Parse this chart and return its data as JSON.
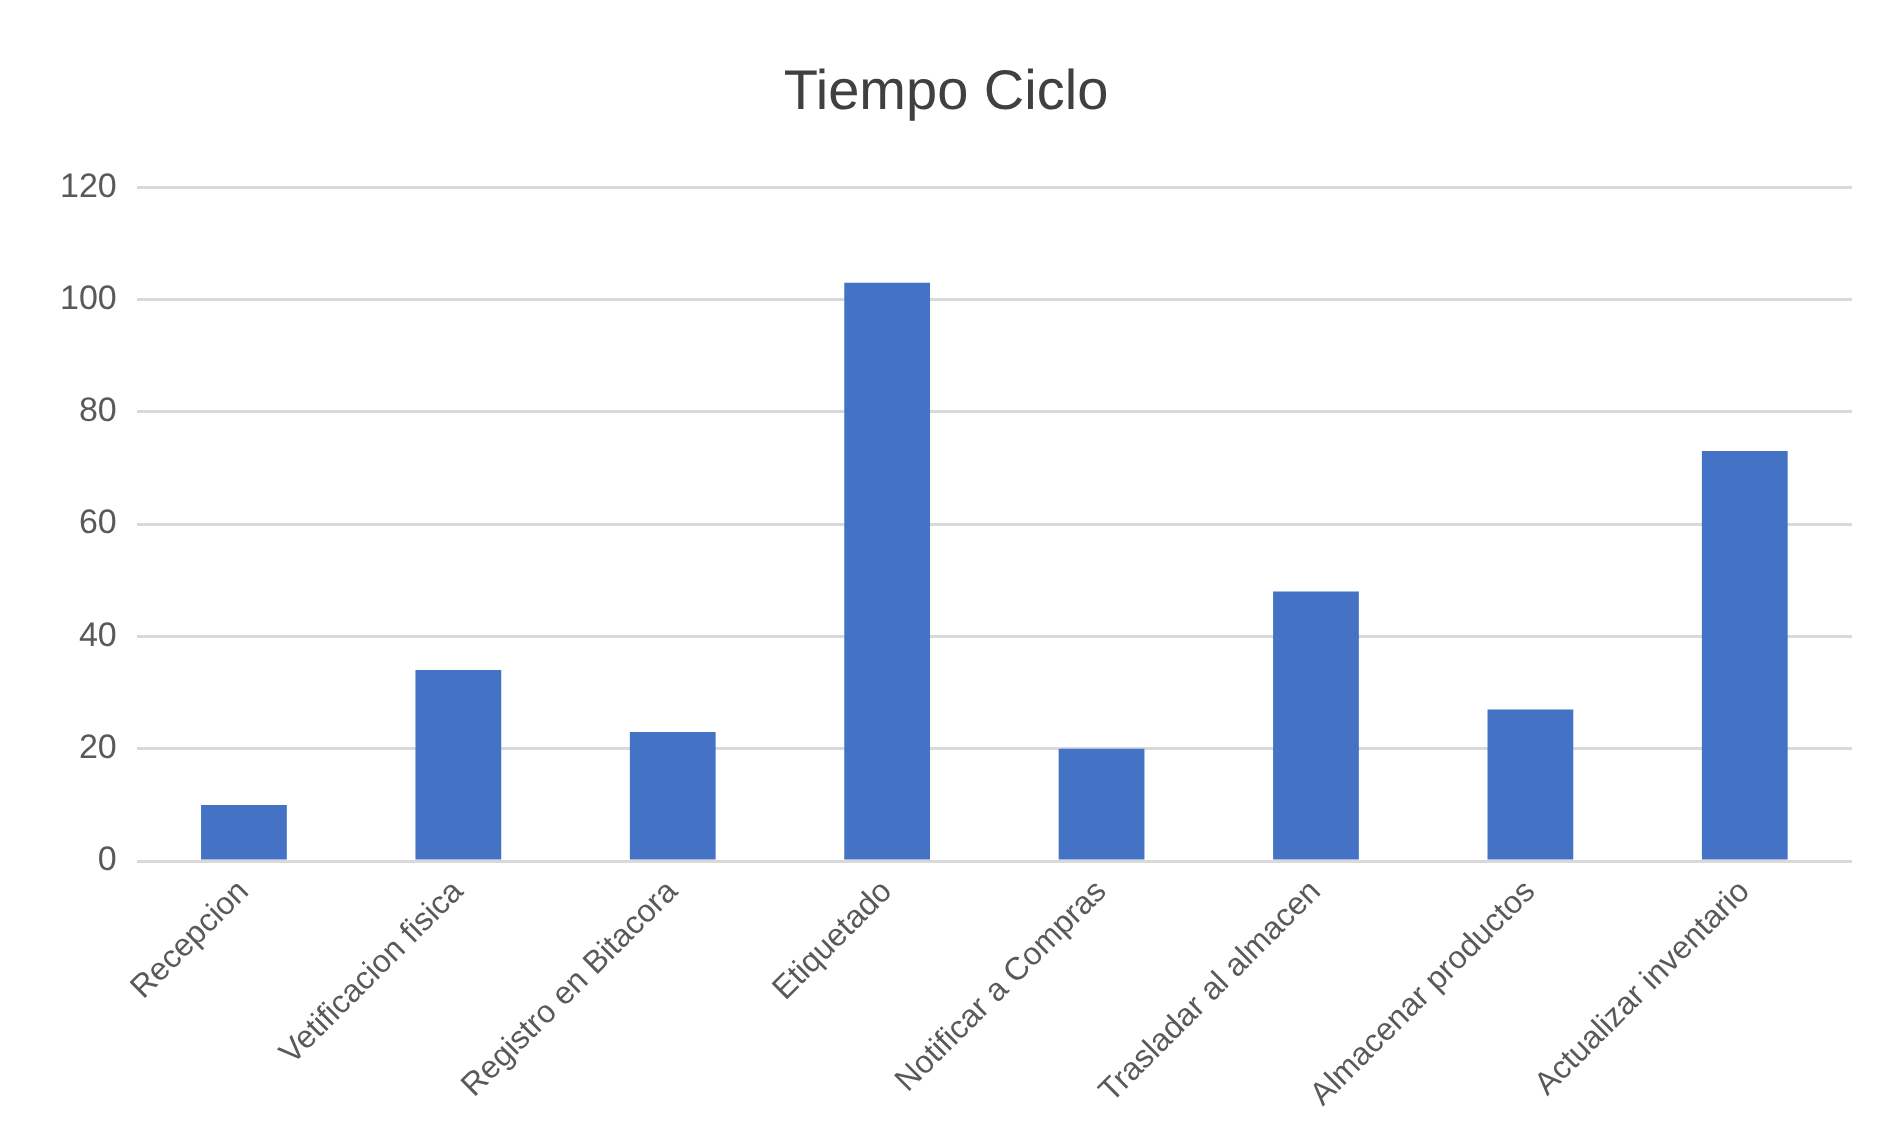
{
  "chart_data": {
    "type": "bar",
    "title": "Tiempo Ciclo",
    "categories": [
      "Recepcion",
      "Vetificacion fisica",
      "Registro en Bitacora",
      "Etiquetado",
      "Notificar a Compras",
      "Trasladar al almacen",
      "Almacenar productos",
      "Actualizar inventario"
    ],
    "values": [
      10,
      34,
      23,
      103,
      20,
      48,
      27,
      73
    ],
    "color": "#4472c4",
    "ylim": [
      0,
      120
    ],
    "yticks": [
      0,
      20,
      40,
      60,
      80,
      100,
      120
    ],
    "grid": "y",
    "legend": false
  }
}
